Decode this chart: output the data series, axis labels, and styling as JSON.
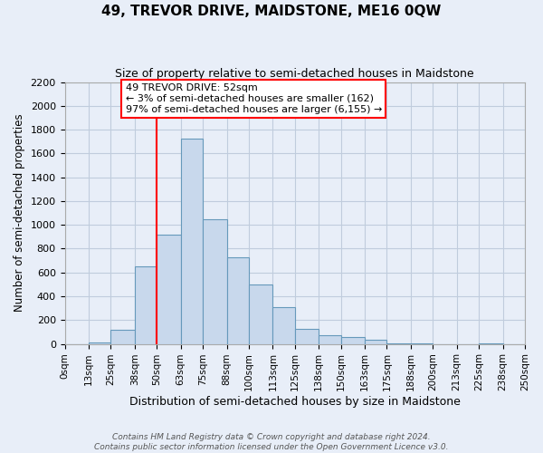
{
  "title": "49, TREVOR DRIVE, MAIDSTONE, ME16 0QW",
  "subtitle": "Size of property relative to semi-detached houses in Maidstone",
  "xlabel": "Distribution of semi-detached houses by size in Maidstone",
  "ylabel": "Number of semi-detached properties",
  "bin_edges": [
    0,
    13,
    25,
    38,
    50,
    63,
    75,
    88,
    100,
    113,
    125,
    138,
    150,
    163,
    175,
    188,
    200,
    213,
    225,
    238,
    250
  ],
  "bin_counts": [
    0,
    10,
    120,
    650,
    920,
    1725,
    1050,
    730,
    500,
    310,
    130,
    70,
    55,
    35,
    5,
    5,
    0,
    0,
    5,
    0
  ],
  "bar_color": "#c8d8ec",
  "bar_edge_color": "#6699bb",
  "red_line_x": 50,
  "annotation_title": "49 TREVOR DRIVE: 52sqm",
  "annotation_line1": "← 3% of semi-detached houses are smaller (162)",
  "annotation_line2": "97% of semi-detached houses are larger (6,155) →",
  "annotation_box_color": "white",
  "annotation_box_edge": "red",
  "ylim": [
    0,
    2200
  ],
  "yticks": [
    0,
    200,
    400,
    600,
    800,
    1000,
    1200,
    1400,
    1600,
    1800,
    2000,
    2200
  ],
  "xtick_labels": [
    "0sqm",
    "13sqm",
    "25sqm",
    "38sqm",
    "50sqm",
    "63sqm",
    "75sqm",
    "88sqm",
    "100sqm",
    "113sqm",
    "125sqm",
    "138sqm",
    "150sqm",
    "163sqm",
    "175sqm",
    "188sqm",
    "200sqm",
    "213sqm",
    "225sqm",
    "238sqm",
    "250sqm"
  ],
  "grid_color": "#c0ccdd",
  "background_color": "#e8eef8",
  "footer_line1": "Contains HM Land Registry data © Crown copyright and database right 2024.",
  "footer_line2": "Contains public sector information licensed under the Open Government Licence v3.0."
}
